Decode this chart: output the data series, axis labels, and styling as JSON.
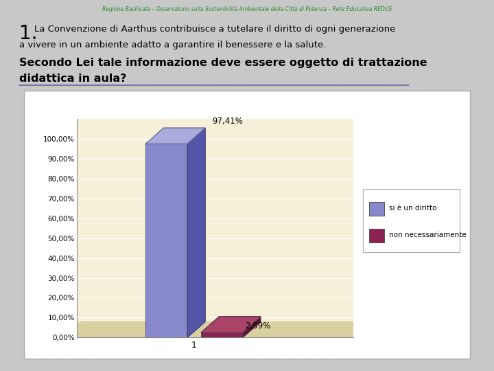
{
  "header": "Regione Basilicata – Osservatorio sulla Sostenibilità Ambientale della Città di Potenza – Rete Educativa REDUS",
  "header_color": "#2e8b2e",
  "bar_labels": [
    "si è un diritto",
    "non necessariamente"
  ],
  "bar_values": [
    97.41,
    2.59
  ],
  "bar_colors": [
    "#8888cc",
    "#8B2252"
  ],
  "bar_side_colors": [
    "#5555aa",
    "#5a1535"
  ],
  "bar_top_colors": [
    "#aaaadd",
    "#aa4466"
  ],
  "x_label": "1",
  "yticks": [
    0,
    10,
    20,
    30,
    40,
    50,
    60,
    70,
    80,
    90,
    100
  ],
  "ytick_labels": [
    "0,00%",
    "10,00%",
    "20,00%",
    "30,00%",
    "40,00%",
    "50,00%",
    "60,00%",
    "70,00%",
    "80,00%",
    "90,00%",
    "100,00%"
  ],
  "value_labels": [
    "97,41%",
    "2,59%"
  ],
  "chart_bg_color": "#f5f0d8",
  "chart_wall_color": "#e8e0b8",
  "chart_floor_color": "#d8d0a0",
  "outer_bg": "#c8c8c8",
  "slide_bg": "#ffffff",
  "stripe_color": "#d0d0d0",
  "line_color": "#7777aa"
}
